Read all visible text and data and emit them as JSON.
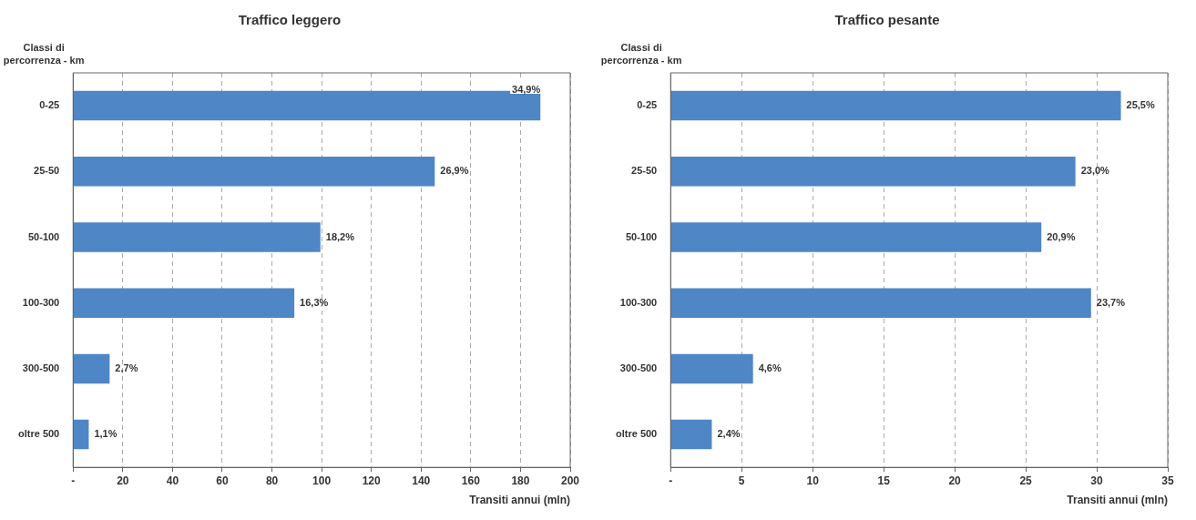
{
  "chart_data": [
    {
      "type": "bar",
      "orientation": "horizontal",
      "title": "Traffico leggero",
      "ylabel": "Classi di percorrenza - km",
      "xlabel": "Transiti annui (mln)",
      "categories": [
        "0-25",
        "25-50",
        "50-100",
        "100-300",
        "300-500",
        "oltre 500"
      ],
      "values": [
        188,
        145.5,
        99.5,
        89,
        14.7,
        6.3
      ],
      "annotations": [
        {
          "text": "34,9%",
          "x": 188,
          "y": "0-25"
        },
        {
          "text": "26,9%",
          "x": 145.5,
          "y": "25-50"
        },
        {
          "text": "18,2%",
          "x": 99.5,
          "y": "50-100"
        },
        {
          "text": "16,3%",
          "x": 89,
          "y": "100-300"
        },
        {
          "text": "2,7%",
          "x": 14.7,
          "y": "300-500"
        },
        {
          "text": "1,1%",
          "x": 6.3,
          "y": "oltre 500"
        }
      ],
      "color": "#4f86c6",
      "xlim": [
        0,
        200
      ],
      "xticks": [
        {
          "value": 0,
          "label": "-"
        },
        20,
        40,
        60,
        80,
        100,
        120,
        140,
        160,
        180,
        200
      ],
      "grid": "x"
    },
    {
      "type": "bar",
      "orientation": "horizontal",
      "title": "Traffico pesante",
      "ylabel": "Classi di percorrenza - km",
      "xlabel": "Transiti annui (mln)",
      "categories": [
        "0-25",
        "25-50",
        "50-100",
        "100-300",
        "300-500",
        "oltre 500"
      ],
      "values": [
        31.7,
        28.5,
        26.1,
        29.6,
        5.8,
        2.9
      ],
      "annotations": [
        {
          "text": "25,5%",
          "x": 31.7,
          "y": "0-25"
        },
        {
          "text": "23,0%",
          "x": 28.5,
          "y": "25-50"
        },
        {
          "text": "20,9%",
          "x": 26.1,
          "y": "50-100"
        },
        {
          "text": "23,7%",
          "x": 29.6,
          "y": "100-300"
        },
        {
          "text": "4,6%",
          "x": 5.8,
          "y": "300-500"
        },
        {
          "text": "2,4%",
          "x": 2.9,
          "y": "oltre 500"
        }
      ],
      "color": "#4f86c6",
      "xlim": [
        0,
        35
      ],
      "xticks": [
        {
          "value": 0,
          "label": "-"
        },
        5,
        10,
        15,
        20,
        25,
        30,
        35
      ],
      "grid": "x"
    }
  ]
}
